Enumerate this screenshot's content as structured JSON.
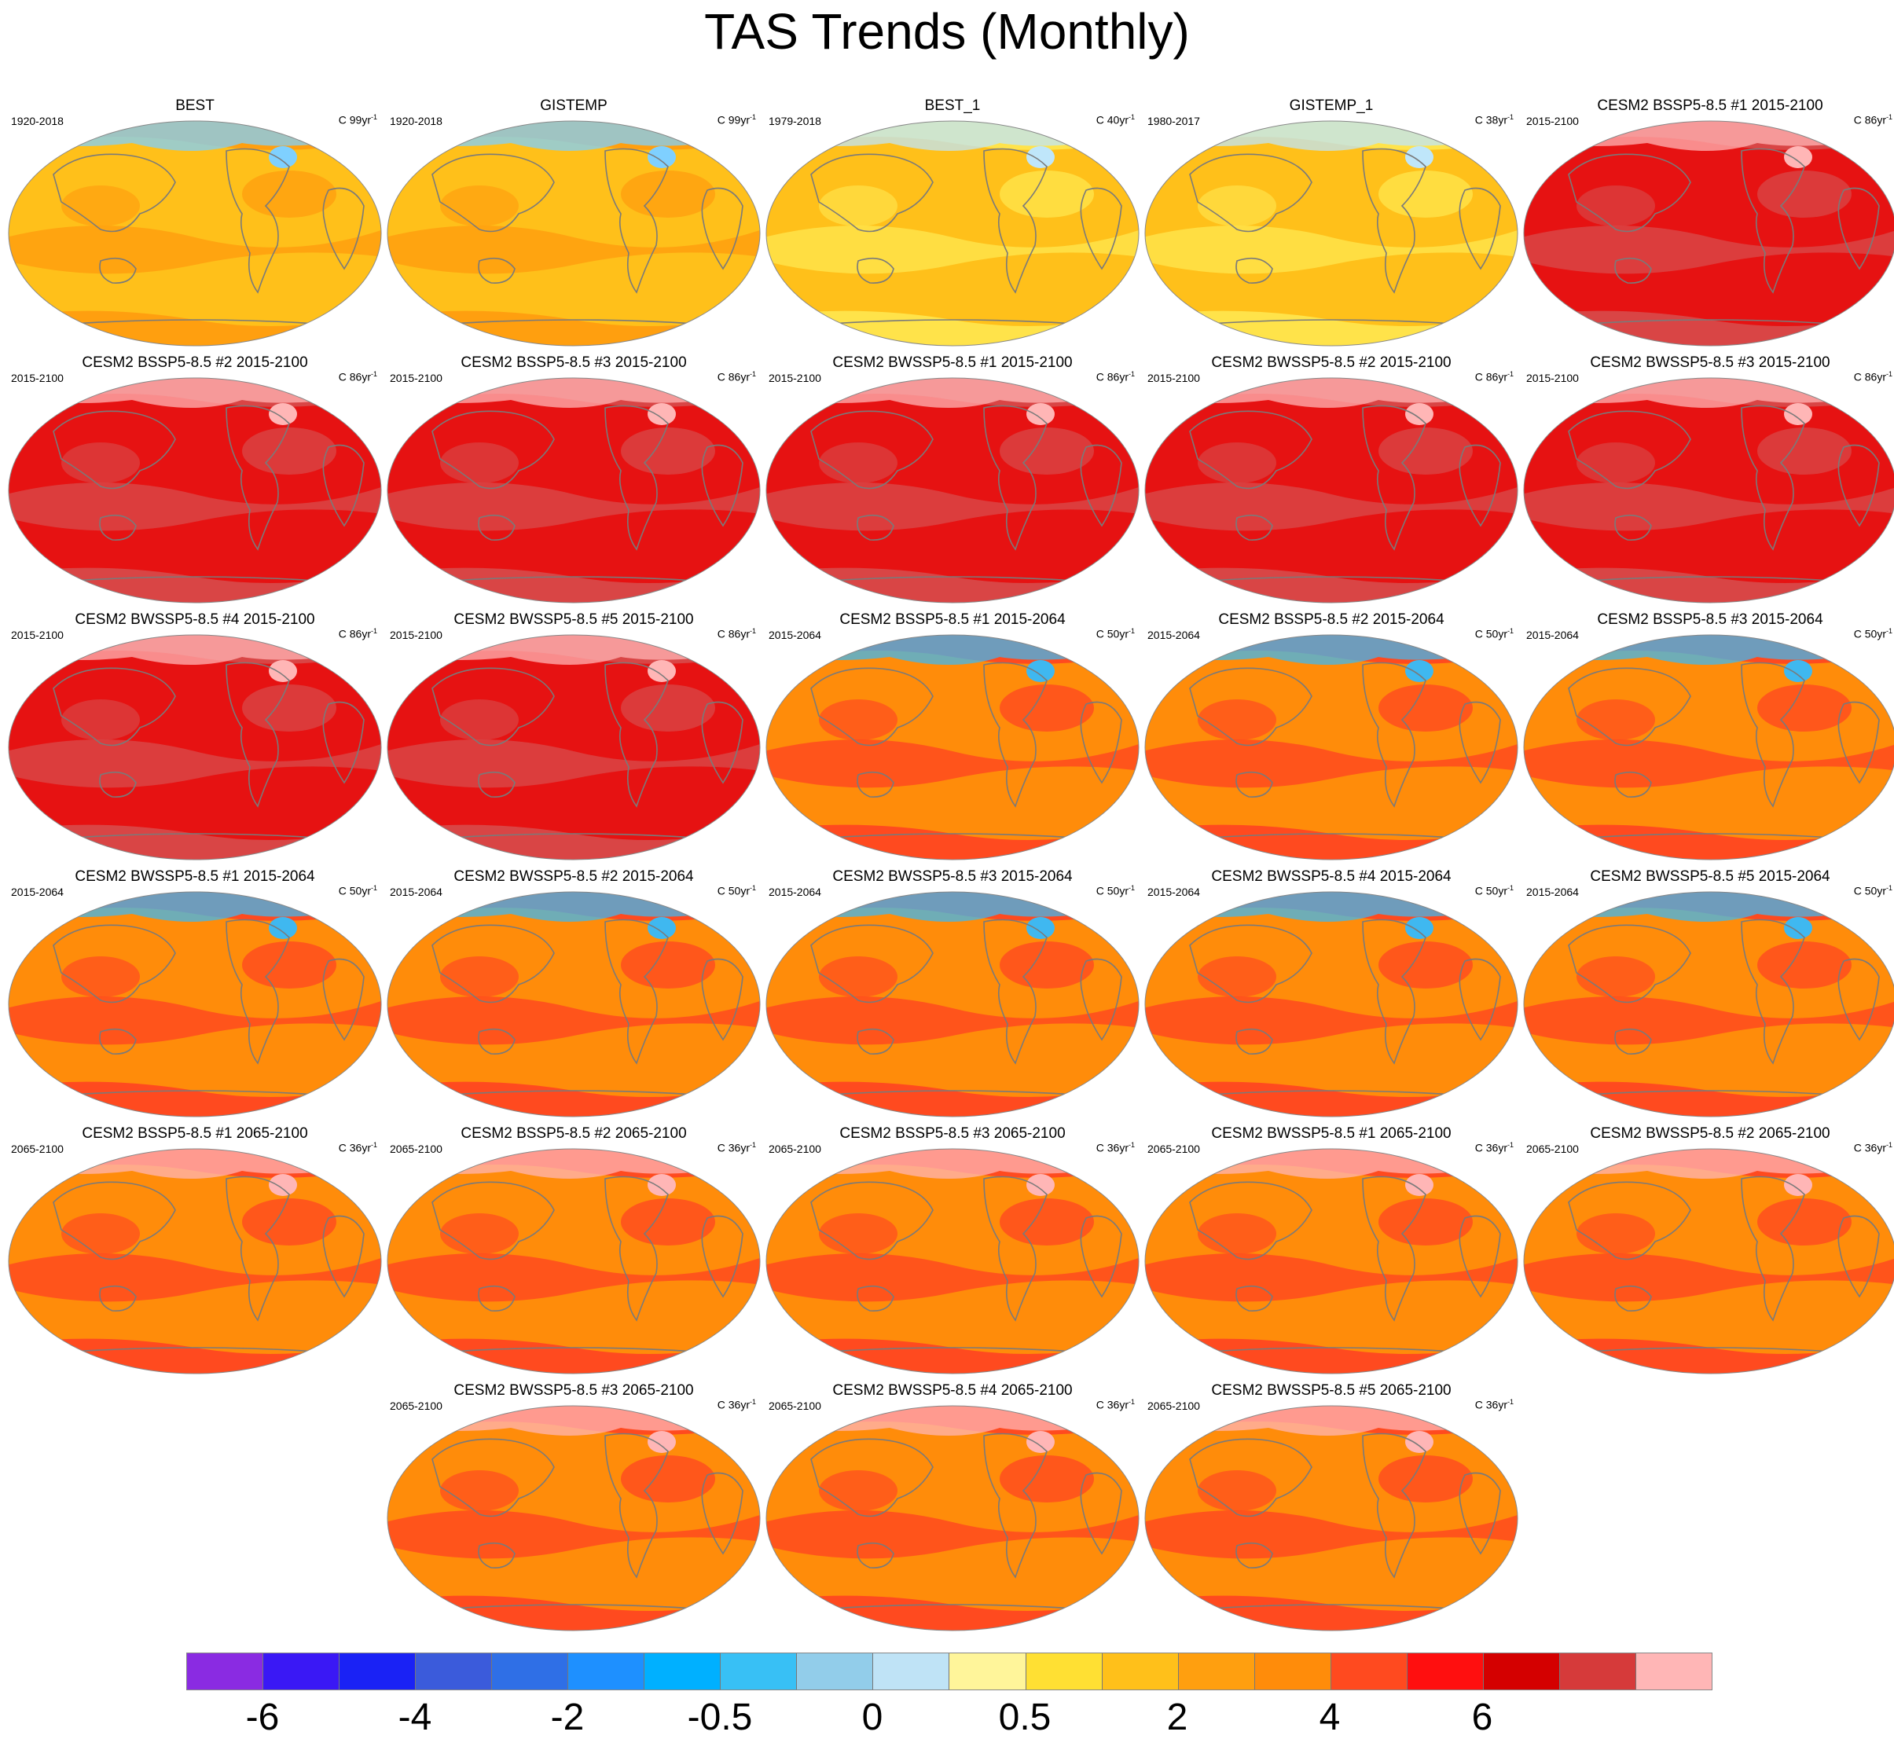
{
  "title": "TAS Trends (Monthly)",
  "panels": [
    {
      "title": "BEST",
      "period": "1920-2018",
      "units": "C 99yr",
      "exp": "-1",
      "fill": "#ffc01a",
      "hi": "#ff9f0f",
      "blob": "#7fd0ff"
    },
    {
      "title": "GISTEMP",
      "period": "1920-2018",
      "units": "C 99yr",
      "exp": "-1",
      "fill": "#ffc01a",
      "hi": "#ff9f0f",
      "blob": "#7fd0ff"
    },
    {
      "title": "BEST_1",
      "period": "1979-2018",
      "units": "C 40yr",
      "exp": "-1",
      "fill": "#ffc01a",
      "hi": "#ffe34a",
      "blob": "#bfe6fa"
    },
    {
      "title": "GISTEMP_1",
      "period": "1980-2017",
      "units": "C 38yr",
      "exp": "-1",
      "fill": "#ffc01a",
      "hi": "#ffe34a",
      "blob": "#bfe6fa"
    },
    {
      "title": "CESM2 BSSP5-8.5 #1 2015-2100",
      "period": "2015-2100",
      "units": "C 86yr",
      "exp": "-1",
      "fill": "#e61212",
      "hi": "#d94545",
      "blob": "#ffb6b6"
    },
    {
      "title": "CESM2 BSSP5-8.5 #2 2015-2100",
      "period": "2015-2100",
      "units": "C 86yr",
      "exp": "-1",
      "fill": "#e61212",
      "hi": "#d94545",
      "blob": "#ffb6b6"
    },
    {
      "title": "CESM2 BSSP5-8.5 #3 2015-2100",
      "period": "2015-2100",
      "units": "C 86yr",
      "exp": "-1",
      "fill": "#e61212",
      "hi": "#d94545",
      "blob": "#ffb6b6"
    },
    {
      "title": "CESM2 BWSSP5-8.5 #1 2015-2100",
      "period": "2015-2100",
      "units": "C 86yr",
      "exp": "-1",
      "fill": "#e61212",
      "hi": "#d94545",
      "blob": "#ffb6b6"
    },
    {
      "title": "CESM2 BWSSP5-8.5 #2 2015-2100",
      "period": "2015-2100",
      "units": "C 86yr",
      "exp": "-1",
      "fill": "#e61212",
      "hi": "#d94545",
      "blob": "#ffb6b6"
    },
    {
      "title": "CESM2 BWSSP5-8.5 #3 2015-2100",
      "period": "2015-2100",
      "units": "C 86yr",
      "exp": "-1",
      "fill": "#e61212",
      "hi": "#d94545",
      "blob": "#ffb6b6"
    },
    {
      "title": "CESM2 BWSSP5-8.5 #4 2015-2100",
      "period": "2015-2100",
      "units": "C 86yr",
      "exp": "-1",
      "fill": "#e61212",
      "hi": "#d94545",
      "blob": "#ffb6b6"
    },
    {
      "title": "CESM2 BWSSP5-8.5 #5 2015-2100",
      "period": "2015-2100",
      "units": "C 86yr",
      "exp": "-1",
      "fill": "#e61212",
      "hi": "#d94545",
      "blob": "#ffb6b6"
    },
    {
      "title": "CESM2 BSSP5-8.5 #1 2015-2064",
      "period": "2015-2064",
      "units": "C 50yr",
      "exp": "-1",
      "fill": "#ff8c0a",
      "hi": "#ff4a1f",
      "blob": "#3fb8f0"
    },
    {
      "title": "CESM2 BSSP5-8.5 #2 2015-2064",
      "period": "2015-2064",
      "units": "C 50yr",
      "exp": "-1",
      "fill": "#ff8c0a",
      "hi": "#ff4a1f",
      "blob": "#3fb8f0"
    },
    {
      "title": "CESM2 BSSP5-8.5 #3 2015-2064",
      "period": "2015-2064",
      "units": "C 50yr",
      "exp": "-1",
      "fill": "#ff8c0a",
      "hi": "#ff4a1f",
      "blob": "#3fb8f0"
    },
    {
      "title": "CESM2 BWSSP5-8.5 #1 2015-2064",
      "period": "2015-2064",
      "units": "C 50yr",
      "exp": "-1",
      "fill": "#ff8c0a",
      "hi": "#ff4a1f",
      "blob": "#3fb8f0"
    },
    {
      "title": "CESM2 BWSSP5-8.5 #2 2015-2064",
      "period": "2015-2064",
      "units": "C 50yr",
      "exp": "-1",
      "fill": "#ff8c0a",
      "hi": "#ff4a1f",
      "blob": "#3fb8f0"
    },
    {
      "title": "CESM2 BWSSP5-8.5 #3 2015-2064",
      "period": "2015-2064",
      "units": "C 50yr",
      "exp": "-1",
      "fill": "#ff8c0a",
      "hi": "#ff4a1f",
      "blob": "#3fb8f0"
    },
    {
      "title": "CESM2 BWSSP5-8.5 #4 2015-2064",
      "period": "2015-2064",
      "units": "C 50yr",
      "exp": "-1",
      "fill": "#ff8c0a",
      "hi": "#ff4a1f",
      "blob": "#3fb8f0"
    },
    {
      "title": "CESM2 BWSSP5-8.5 #5 2015-2064",
      "period": "2015-2064",
      "units": "C 50yr",
      "exp": "-1",
      "fill": "#ff8c0a",
      "hi": "#ff4a1f",
      "blob": "#3fb8f0"
    },
    {
      "title": "CESM2 BSSP5-8.5 #1 2065-2100",
      "period": "2065-2100",
      "units": "C 36yr",
      "exp": "-1",
      "fill": "#ff8c0a",
      "hi": "#ff4a1f",
      "blob": "#ffb6b6"
    },
    {
      "title": "CESM2 BSSP5-8.5 #2 2065-2100",
      "period": "2065-2100",
      "units": "C 36yr",
      "exp": "-1",
      "fill": "#ff8c0a",
      "hi": "#ff4a1f",
      "blob": "#ffb6b6"
    },
    {
      "title": "CESM2 BSSP5-8.5 #3 2065-2100",
      "period": "2065-2100",
      "units": "C 36yr",
      "exp": "-1",
      "fill": "#ff8c0a",
      "hi": "#ff4a1f",
      "blob": "#ffb6b6"
    },
    {
      "title": "CESM2 BWSSP5-8.5 #1 2065-2100",
      "period": "2065-2100",
      "units": "C 36yr",
      "exp": "-1",
      "fill": "#ff8c0a",
      "hi": "#ff4a1f",
      "blob": "#ffb6b6"
    },
    {
      "title": "CESM2 BWSSP5-8.5 #2 2065-2100",
      "period": "2065-2100",
      "units": "C 36yr",
      "exp": "-1",
      "fill": "#ff8c0a",
      "hi": "#ff4a1f",
      "blob": "#ffb6b6"
    },
    {
      "title": "CESM2 BWSSP5-8.5 #3 2065-2100",
      "period": "2065-2100",
      "units": "C 36yr",
      "exp": "-1",
      "fill": "#ff8c0a",
      "hi": "#ff4a1f",
      "blob": "#ffb6b6"
    },
    {
      "title": "CESM2 BWSSP5-8.5 #4 2065-2100",
      "period": "2065-2100",
      "units": "C 36yr",
      "exp": "-1",
      "fill": "#ff8c0a",
      "hi": "#ff4a1f",
      "blob": "#ffb6b6"
    },
    {
      "title": "CESM2 BWSSP5-8.5 #5 2065-2100",
      "period": "2065-2100",
      "units": "C 36yr",
      "exp": "-1",
      "fill": "#ff8c0a",
      "hi": "#ff4a1f",
      "blob": "#ffb6b6"
    }
  ],
  "colorbar": {
    "colors": [
      "#8a2be2",
      "#3a18f5",
      "#1a22f5",
      "#3b5bdb",
      "#2f6fe6",
      "#1e90ff",
      "#00b0ff",
      "#38c0f5",
      "#92cdea",
      "#bfe3f6",
      "#fff59a",
      "#ffe033",
      "#ffc01a",
      "#ff9f0f",
      "#ff8c0a",
      "#ff4a1f",
      "#ff0f0f",
      "#d40000",
      "#d63a3a",
      "#ffb6b6"
    ],
    "tick_labels": [
      "-6",
      "-4",
      "-2",
      "-0.5",
      "0",
      "0.5",
      "2",
      "4",
      "6"
    ]
  }
}
